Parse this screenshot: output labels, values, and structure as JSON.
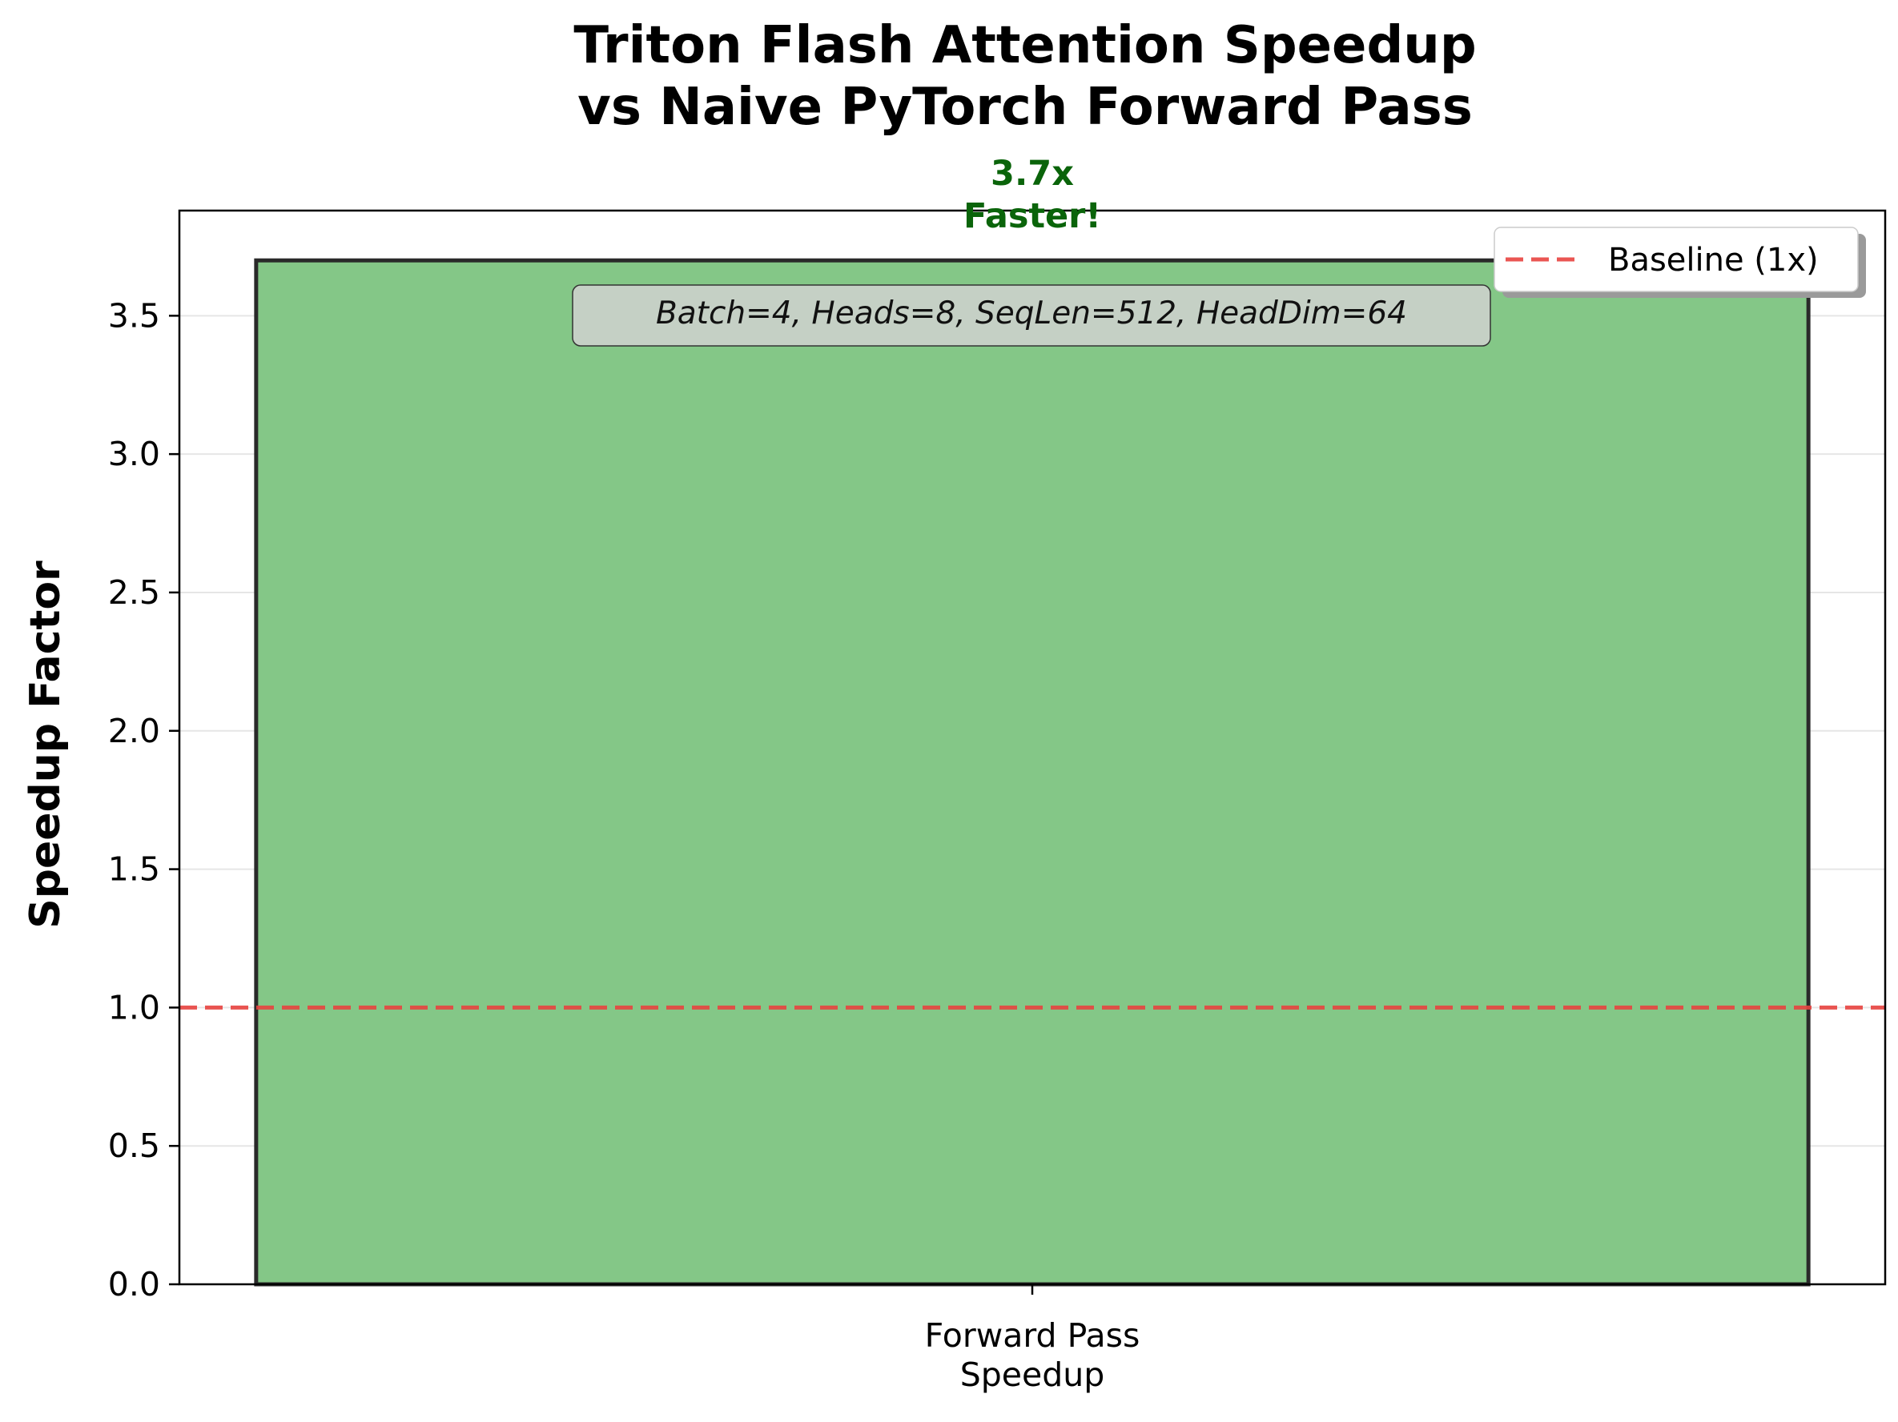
{
  "chart_data": {
    "type": "bar",
    "title": "Triton Flash Attention Speedup vs Naive PyTorch Forward Pass",
    "title_lines": [
      "Triton Flash Attention Speedup",
      "vs Naive PyTorch Forward Pass"
    ],
    "categories": [
      "Forward Pass\nSpeedup"
    ],
    "category_lines": [
      "Forward Pass",
      "Speedup"
    ],
    "values": [
      3.7
    ],
    "bar_label_lines": [
      "3.7x",
      "Faster!"
    ],
    "ylabel": "Speedup Factor",
    "xlabel": "",
    "ylim": [
      0,
      3.88
    ],
    "yticks": [
      0.0,
      0.5,
      1.0,
      1.5,
      2.0,
      2.5,
      3.0,
      3.5
    ],
    "ytick_labels": [
      "0.0",
      "0.5",
      "1.0",
      "1.5",
      "2.0",
      "2.5",
      "3.0",
      "3.5"
    ],
    "grid": "y",
    "baseline": {
      "value": 1.0,
      "label": "Baseline (1x)",
      "color": "#e8423f",
      "style": "dashed"
    },
    "annotation": "Batch=4, Heads=8, SeqLen=512, HeadDim=64",
    "legend_position": "top-right",
    "colors": {
      "bar_fill": "#84c787",
      "bar_edge": "#2a2a2a",
      "bar_label": "#0a640a",
      "annotation_box": "#c5d0c5",
      "grid": "#e6e6e6"
    }
  }
}
